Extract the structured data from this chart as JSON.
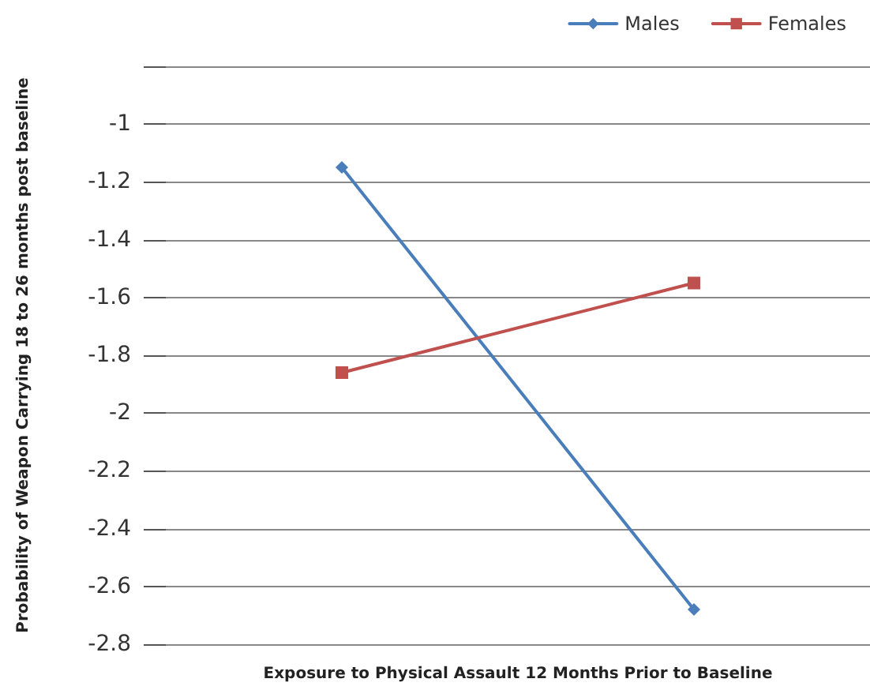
{
  "chart_data": {
    "type": "line",
    "xlabel": "Exposure to Physical Assault 12 Months Prior to Baseline",
    "ylabel": "Probability of Weapon Carrying 18 to 26 months post baseline",
    "categories": [
      null,
      null
    ],
    "series": [
      {
        "name": "Males",
        "color": "#4a7ebb",
        "marker": "diamond",
        "values": [
          -1.15,
          -2.68
        ]
      },
      {
        "name": "Females",
        "color": "#c0504d",
        "marker": "square",
        "values": [
          -1.86,
          -1.55
        ]
      }
    ],
    "ylim": [
      -2.8,
      -0.8
    ],
    "yticks": [
      -2.8,
      -2.6,
      -2.4,
      -2.2,
      -2,
      -1.8,
      -1.6,
      -1.4,
      -1.2,
      -1,
      {
        "value": -0.8,
        "label": null
      }
    ],
    "grid": "y",
    "legend": "top right",
    "line_style": "solid"
  }
}
